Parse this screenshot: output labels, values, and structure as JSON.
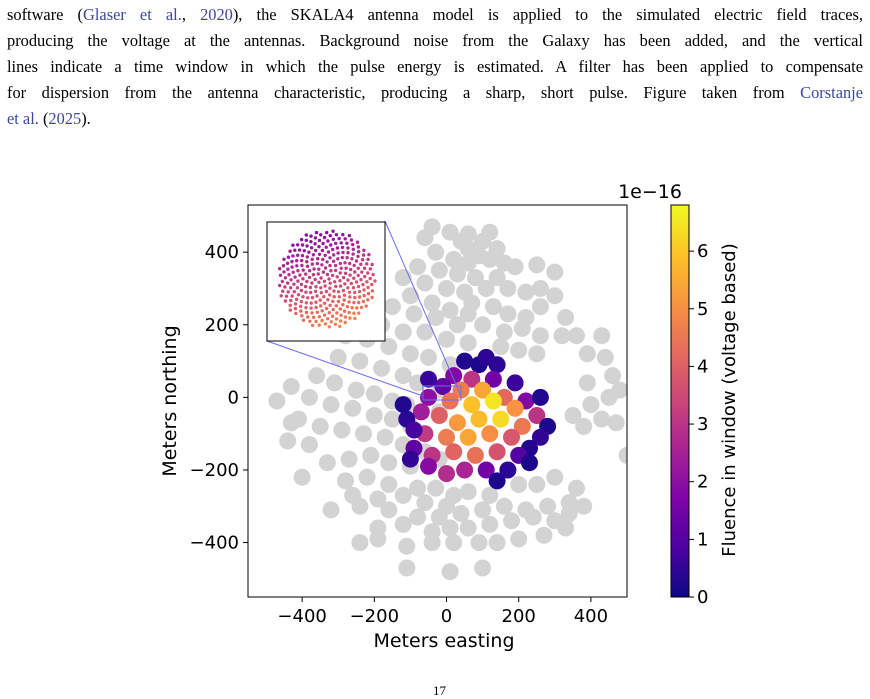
{
  "caption": {
    "line1_a": "software (",
    "line1_link": "Glaser et al.",
    "line1_b": ", ",
    "line1_year": "2020",
    "line1_c": "), the SKALA4 antenna model is applied to the simulated electric field traces,",
    "line2": "producing the voltage at the antennas. Background noise from the Galaxy has been added, and the vertical",
    "line3": "lines indicate a time window in which the pulse energy is estimated. A filter has been applied to compensate",
    "line4_a": "for dispersion from the antenna characteristic, producing a sharp, short pulse. Figure taken from ",
    "line4_link": "Corstanje",
    "line5_link": "et al.",
    "line5_b": " (",
    "line5_year": "2025",
    "line5_c": ")."
  },
  "page_number": "17",
  "chart_data": {
    "type": "scatter",
    "xlabel": "Meters easting",
    "ylabel": "Meters northing",
    "xlim": [
      -550,
      500
    ],
    "ylim": [
      -550,
      530
    ],
    "xticks": [
      -400,
      -200,
      0,
      200,
      400
    ],
    "yticks": [
      -400,
      -200,
      0,
      200,
      400
    ],
    "xtick_labels": [
      "−400",
      "−200",
      "0",
      "200",
      "400"
    ],
    "ytick_labels": [
      "−400",
      "−200",
      "0",
      "200",
      "400"
    ],
    "grid": false,
    "inactive_color": "#d3d3d3",
    "colormap": "plasma",
    "colorbar": {
      "label": "Fluence in window (voltage based)",
      "scale_label": "1e−16",
      "range": [
        0,
        6.8
      ],
      "ticks": [
        0,
        1,
        2,
        3,
        4,
        5,
        6
      ],
      "tick_labels": [
        "0",
        "1",
        "2",
        "3",
        "4",
        "5",
        "6"
      ]
    },
    "inset": {
      "description_hidden": true,
      "source_rect": {
        "x": [
          15,
          55
        ],
        "y": [
          0,
          15
        ]
      }
    },
    "inactive_stations": [
      [
        -40,
        470
      ],
      [
        10,
        455
      ],
      [
        60,
        450
      ],
      [
        120,
        455
      ],
      [
        -60,
        440
      ],
      [
        40,
        430
      ],
      [
        100,
        430
      ],
      [
        140,
        410
      ],
      [
        60,
        410
      ],
      [
        90,
        390
      ],
      [
        -30,
        400
      ],
      [
        20,
        380
      ],
      [
        60,
        370
      ],
      [
        120,
        380
      ],
      [
        160,
        370
      ],
      [
        190,
        360
      ],
      [
        250,
        365
      ],
      [
        300,
        345
      ],
      [
        -80,
        360
      ],
      [
        -20,
        350
      ],
      [
        30,
        340
      ],
      [
        80,
        330
      ],
      [
        140,
        330
      ],
      [
        170,
        300
      ],
      [
        220,
        290
      ],
      [
        260,
        300
      ],
      [
        300,
        280
      ],
      [
        -120,
        330
      ],
      [
        -60,
        315
      ],
      [
        0,
        300
      ],
      [
        50,
        290
      ],
      [
        110,
        300
      ],
      [
        70,
        260
      ],
      [
        130,
        250
      ],
      [
        170,
        230
      ],
      [
        220,
        220
      ],
      [
        -100,
        280
      ],
      [
        -40,
        260
      ],
      [
        10,
        240
      ],
      [
        60,
        230
      ],
      [
        260,
        250
      ],
      [
        330,
        220
      ],
      [
        -150,
        250
      ],
      [
        -90,
        230
      ],
      [
        -30,
        220
      ],
      [
        30,
        200
      ],
      [
        100,
        200
      ],
      [
        160,
        180
      ],
      [
        210,
        190
      ],
      [
        260,
        170
      ],
      [
        320,
        170
      ],
      [
        360,
        170
      ],
      [
        430,
        170
      ],
      [
        -180,
        200
      ],
      [
        -120,
        180
      ],
      [
        -60,
        180
      ],
      [
        0,
        160
      ],
      [
        60,
        150
      ],
      [
        150,
        140
      ],
      [
        200,
        130
      ],
      [
        250,
        120
      ],
      [
        390,
        120
      ],
      [
        440,
        110
      ],
      [
        -280,
        170
      ],
      [
        -220,
        160
      ],
      [
        -160,
        140
      ],
      [
        -100,
        120
      ],
      [
        -50,
        110
      ],
      [
        10,
        90
      ],
      [
        -300,
        110
      ],
      [
        -240,
        100
      ],
      [
        -180,
        80
      ],
      [
        -120,
        60
      ],
      [
        -80,
        40
      ],
      [
        -20,
        20
      ],
      [
        -360,
        60
      ],
      [
        -310,
        40
      ],
      [
        -250,
        20
      ],
      [
        -200,
        10
      ],
      [
        -150,
        -10
      ],
      [
        -110,
        -20
      ],
      [
        -20,
        -40
      ],
      [
        -430,
        30
      ],
      [
        -380,
        0
      ],
      [
        -320,
        -20
      ],
      [
        -260,
        -30
      ],
      [
        -200,
        -50
      ],
      [
        -150,
        -60
      ],
      [
        -100,
        -80
      ],
      [
        -470,
        -10
      ],
      [
        -410,
        -60
      ],
      [
        -350,
        -80
      ],
      [
        -290,
        -90
      ],
      [
        -230,
        -100
      ],
      [
        -170,
        -110
      ],
      [
        -120,
        -130
      ],
      [
        -440,
        -120
      ],
      [
        -380,
        -130
      ],
      [
        -60,
        -150
      ],
      [
        -20,
        -170
      ],
      [
        -330,
        -180
      ],
      [
        -270,
        -170
      ],
      [
        -210,
        -160
      ],
      [
        -160,
        -180
      ],
      [
        -100,
        -190
      ],
      [
        -400,
        -220
      ],
      [
        -280,
        -230
      ],
      [
        -220,
        -220
      ],
      [
        -160,
        -240
      ],
      [
        -80,
        -250
      ],
      [
        -30,
        -250
      ],
      [
        20,
        -270
      ],
      [
        60,
        -260
      ],
      [
        -260,
        -270
      ],
      [
        -190,
        -280
      ],
      [
        -120,
        -270
      ],
      [
        -60,
        -290
      ],
      [
        0,
        -300
      ],
      [
        120,
        -270
      ],
      [
        200,
        -240
      ],
      [
        250,
        -240
      ],
      [
        300,
        -220
      ],
      [
        360,
        -250
      ],
      [
        -320,
        -310
      ],
      [
        -240,
        -300
      ],
      [
        -160,
        -310
      ],
      [
        -80,
        -330
      ],
      [
        -20,
        -330
      ],
      [
        40,
        -320
      ],
      [
        100,
        -310
      ],
      [
        160,
        -300
      ],
      [
        220,
        -310
      ],
      [
        280,
        -300
      ],
      [
        340,
        -290
      ],
      [
        380,
        -300
      ],
      [
        -190,
        -360
      ],
      [
        -120,
        -350
      ],
      [
        -40,
        -370
      ],
      [
        10,
        -360
      ],
      [
        60,
        -360
      ],
      [
        120,
        -350
      ],
      [
        180,
        -340
      ],
      [
        240,
        -330
      ],
      [
        300,
        -340
      ],
      [
        340,
        -320
      ],
      [
        -240,
        -400
      ],
      [
        -190,
        -390
      ],
      [
        -110,
        -410
      ],
      [
        -40,
        -400
      ],
      [
        20,
        -400
      ],
      [
        90,
        -400
      ],
      [
        140,
        -400
      ],
      [
        200,
        -390
      ],
      [
        270,
        -380
      ],
      [
        330,
        -360
      ],
      [
        -110,
        -470
      ],
      [
        10,
        -480
      ],
      [
        100,
        -470
      ],
      [
        380,
        -80
      ],
      [
        430,
        -60
      ],
      [
        470,
        -70
      ],
      [
        350,
        -50
      ],
      [
        400,
        -20
      ],
      [
        450,
        0
      ],
      [
        480,
        20
      ],
      [
        390,
        40
      ],
      [
        460,
        60
      ],
      [
        500,
        -160
      ],
      [
        560,
        -180
      ],
      [
        -430,
        -70
      ]
    ],
    "active_stations": [
      [
        50,
        100
      ],
      [
        90,
        90
      ],
      [
        140,
        90
      ],
      [
        20,
        60
      ],
      [
        70,
        50
      ],
      [
        130,
        50
      ],
      [
        190,
        40
      ],
      [
        -10,
        30
      ],
      [
        40,
        20
      ],
      [
        100,
        20
      ],
      [
        160,
        0
      ],
      [
        220,
        -10
      ],
      [
        260,
        0
      ],
      [
        -50,
        0
      ],
      [
        10,
        -10
      ],
      [
        70,
        -20
      ],
      [
        130,
        -10
      ],
      [
        190,
        -30
      ],
      [
        250,
        -50
      ],
      [
        280,
        -80
      ],
      [
        -70,
        -40
      ],
      [
        -20,
        -50
      ],
      [
        30,
        -70
      ],
      [
        90,
        -60
      ],
      [
        150,
        -60
      ],
      [
        210,
        -80
      ],
      [
        260,
        -110
      ],
      [
        -110,
        -60
      ],
      [
        -60,
        -100
      ],
      [
        0,
        -110
      ],
      [
        60,
        -110
      ],
      [
        120,
        -100
      ],
      [
        180,
        -110
      ],
      [
        230,
        -140
      ],
      [
        -90,
        -140
      ],
      [
        -40,
        -160
      ],
      [
        20,
        -150
      ],
      [
        80,
        -160
      ],
      [
        140,
        -150
      ],
      [
        200,
        -160
      ],
      [
        -100,
        -170
      ],
      [
        -50,
        -190
      ],
      [
        0,
        -210
      ],
      [
        50,
        -200
      ],
      [
        110,
        -200
      ],
      [
        170,
        -200
      ],
      [
        230,
        -180
      ],
      [
        -120,
        -20
      ],
      [
        -50,
        50
      ],
      [
        110,
        110
      ],
      [
        -90,
        -90
      ],
      [
        140,
        -230
      ]
    ],
    "active_values": [
      0.3,
      0.2,
      0.4,
      1.8,
      3.0,
      1.5,
      0.6,
      1.2,
      4.6,
      5.4,
      4.2,
      1.8,
      0.3,
      2.0,
      4.4,
      5.9,
      6.5,
      5.1,
      3.0,
      0.2,
      2.4,
      4.0,
      5.2,
      5.8,
      6.3,
      4.5,
      0.5,
      0.4,
      3.1,
      4.6,
      5.4,
      5.0,
      3.8,
      0.3,
      1.2,
      3.0,
      4.1,
      4.4,
      3.7,
      1.0,
      0.5,
      1.9,
      2.8,
      2.6,
      1.5,
      0.4,
      0.2,
      0.3,
      0.6,
      0.4,
      0.8,
      0.2
    ]
  }
}
